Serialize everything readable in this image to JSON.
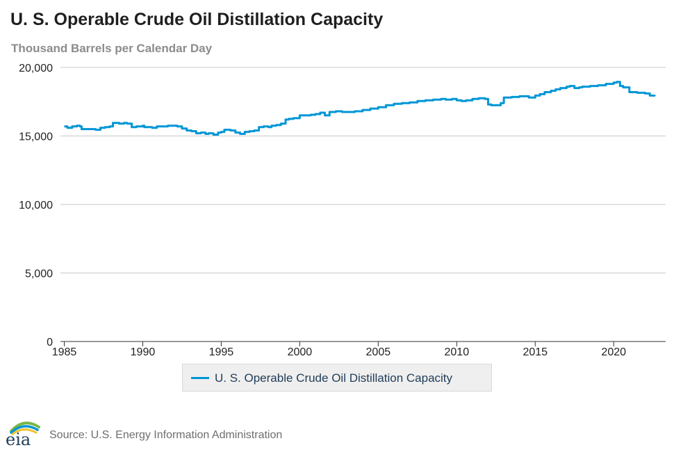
{
  "title": "U. S. Operable Crude Oil Distillation Capacity",
  "subtitle": "Thousand Barrels per Calendar Day",
  "source": "Source: U.S. Energy Information Administration",
  "logo_text": "eia",
  "legend_label": "U. S. Operable Crude Oil Distillation Capacity",
  "colors": {
    "series": "#0096d6",
    "grid": "#c8c8c8",
    "axis": "#333333",
    "text": "#1f1f1f"
  },
  "chart_data": {
    "type": "line",
    "title": "U. S. Operable Crude Oil Distillation Capacity",
    "ylabel": "Thousand Barrels per Calendar Day",
    "xlabel": "",
    "xlim": [
      1985,
      2023
    ],
    "ylim": [
      0,
      20000
    ],
    "x_ticks": [
      1985,
      1990,
      1995,
      2000,
      2005,
      2010,
      2015,
      2020
    ],
    "x_tick_labels": [
      "1985",
      "1990",
      "1995",
      "2000",
      "2005",
      "2010",
      "2015",
      "2020"
    ],
    "y_ticks": [
      0,
      5000,
      10000,
      15000,
      20000
    ],
    "y_tick_labels": [
      "0",
      "5,000",
      "10,000",
      "15,000",
      "20,000"
    ],
    "grid": true,
    "legend_position": "bottom",
    "series": [
      {
        "name": "U. S. Operable Crude Oil Distillation Capacity",
        "x": [
          1985.0,
          1985.2,
          1985.5,
          1985.8,
          1986.0,
          1986.1,
          1986.5,
          1987.0,
          1987.3,
          1987.6,
          1987.9,
          1988.1,
          1988.5,
          1988.8,
          1989.0,
          1989.3,
          1989.6,
          1990.0,
          1990.1,
          1990.6,
          1990.9,
          1991.3,
          1991.6,
          1991.9,
          1992.2,
          1992.5,
          1992.8,
          1993.1,
          1993.4,
          1993.7,
          1994.0,
          1994.2,
          1994.5,
          1994.8,
          1995.0,
          1995.2,
          1995.6,
          1995.9,
          1996.2,
          1996.5,
          1996.8,
          1997.1,
          1997.4,
          1997.7,
          1998.0,
          1998.2,
          1998.5,
          1998.8,
          1999.1,
          1999.3,
          1999.6,
          2000.0,
          2000.3,
          2000.7,
          2001.0,
          2001.3,
          2001.6,
          2001.9,
          2002.3,
          2002.7,
          2003.0,
          2003.5,
          2004.0,
          2004.5,
          2005.0,
          2005.5,
          2006.0,
          2006.5,
          2007.0,
          2007.5,
          2008.0,
          2008.5,
          2009.0,
          2009.3,
          2009.7,
          2010.0,
          2010.3,
          2010.6,
          2011.0,
          2011.4,
          2011.8,
          2012.0,
          2012.2,
          2012.6,
          2012.8,
          2013.0,
          2013.5,
          2014.0,
          2014.3,
          2014.6,
          2015.0,
          2015.3,
          2015.6,
          2016.0,
          2016.3,
          2016.6,
          2017.0,
          2017.2,
          2017.5,
          2017.8,
          2018.0,
          2018.5,
          2019.0,
          2019.5,
          2020.0,
          2020.2,
          2020.4,
          2020.6,
          2021.0,
          2021.5,
          2022.0,
          2022.3,
          2022.6
        ],
        "values": [
          15700,
          15600,
          15700,
          15750,
          15700,
          15500,
          15500,
          15450,
          15600,
          15650,
          15700,
          15950,
          15900,
          15950,
          15900,
          15650,
          15700,
          15750,
          15650,
          15600,
          15700,
          15700,
          15750,
          15750,
          15700,
          15550,
          15400,
          15350,
          15200,
          15250,
          15150,
          15200,
          15100,
          15250,
          15300,
          15450,
          15400,
          15250,
          15150,
          15300,
          15350,
          15400,
          15650,
          15700,
          15650,
          15750,
          15800,
          15900,
          16200,
          16250,
          16300,
          16500,
          16500,
          16550,
          16600,
          16700,
          16500,
          16750,
          16800,
          16750,
          16750,
          16800,
          16900,
          17000,
          17100,
          17250,
          17350,
          17400,
          17450,
          17550,
          17600,
          17650,
          17700,
          17650,
          17700,
          17600,
          17550,
          17600,
          17700,
          17750,
          17700,
          17300,
          17250,
          17250,
          17400,
          17800,
          17850,
          17900,
          17900,
          17800,
          17950,
          18050,
          18200,
          18300,
          18400,
          18500,
          18600,
          18650,
          18500,
          18550,
          18600,
          18650,
          18700,
          18800,
          18900,
          18950,
          18650,
          18550,
          18200,
          18150,
          18100,
          17950,
          18000
        ]
      }
    ]
  }
}
